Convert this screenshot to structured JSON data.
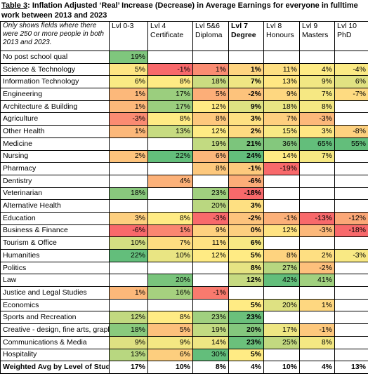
{
  "title": {
    "label": "Table 3",
    "text": ": Inflation Adjusted ‘Real’ Increase (Decrease) in Average Earnings for everyone in fulltime work between 2013 and 2023"
  },
  "table": {
    "note": "Only shows fields where there were 250 or more people in both 2013 and 2023.",
    "columns": [
      {
        "level": "Lvl 0-3"
      },
      {
        "level": "Lvl 4",
        "name": "Certificate"
      },
      {
        "level": "Lvl 5&6",
        "name": "Diploma"
      },
      {
        "level": "Lvl 7",
        "name": "Degree",
        "bold": true
      },
      {
        "level": "Lvl 8",
        "name": "Honours"
      },
      {
        "level": "Lvl 9",
        "name": "Masters"
      },
      {
        "level": "Lvl 10",
        "name": "PhD"
      }
    ],
    "rows": [
      {
        "label": "No post school qual",
        "cells": [
          "19%",
          null,
          null,
          null,
          null,
          null,
          null
        ]
      },
      {
        "label": "Science & Technology",
        "cells": [
          "5%",
          "-1%",
          "1%",
          "1%",
          "11%",
          "4%",
          "-4%"
        ]
      },
      {
        "label": "Information Technology",
        "cells": [
          "6%",
          "8%",
          "18%",
          "7%",
          "13%",
          "9%",
          "6%"
        ]
      },
      {
        "label": "Engineering",
        "cells": [
          "1%",
          "17%",
          "5%",
          "-2%",
          "9%",
          "7%",
          "-7%"
        ]
      },
      {
        "label": "Architecture & Building",
        "cells": [
          "1%",
          "17%",
          "12%",
          "9%",
          "18%",
          "8%",
          null
        ]
      },
      {
        "label": "Agriculture",
        "cells": [
          "-3%",
          "8%",
          "8%",
          "3%",
          "7%",
          "-3%",
          null
        ]
      },
      {
        "label": "Other Health",
        "cells": [
          "1%",
          "13%",
          "12%",
          "2%",
          "15%",
          "3%",
          "-8%"
        ]
      },
      {
        "label": "Medicine",
        "cells": [
          null,
          null,
          "19%",
          "21%",
          "36%",
          "65%",
          "55%"
        ]
      },
      {
        "label": "Nursing",
        "cells": [
          "2%",
          "22%",
          "6%",
          "24%",
          "14%",
          "7%",
          null
        ]
      },
      {
        "label": "Pharmacy",
        "cells": [
          null,
          null,
          "8%",
          "-1%",
          "-19%",
          null,
          null
        ]
      },
      {
        "label": "Dentistry",
        "cells": [
          null,
          "4%",
          null,
          "-6%",
          null,
          null,
          null
        ]
      },
      {
        "label": "Veterinarian",
        "cells": [
          "18%",
          null,
          "23%",
          "-18%",
          null,
          null,
          null
        ]
      },
      {
        "label": "Alternative Health",
        "cells": [
          null,
          null,
          "20%",
          "3%",
          null,
          null,
          null
        ]
      },
      {
        "label": "Education",
        "cells": [
          "3%",
          "8%",
          "-3%",
          "-2%",
          "-1%",
          "-13%",
          "-12%"
        ]
      },
      {
        "label": "Business & Finance",
        "cells": [
          "-6%",
          "1%",
          "9%",
          "0%",
          "12%",
          "-3%",
          "-18%"
        ]
      },
      {
        "label": "Tourism & Office",
        "cells": [
          "10%",
          "7%",
          "11%",
          "6%",
          null,
          null,
          null
        ]
      },
      {
        "label": "Humanities",
        "cells": [
          "22%",
          "10%",
          "12%",
          "5%",
          "8%",
          "2%",
          "-3%"
        ]
      },
      {
        "label": "Politics",
        "cells": [
          null,
          null,
          null,
          "8%",
          "27%",
          "-2%",
          null
        ]
      },
      {
        "label": "Law",
        "cells": [
          null,
          "20%",
          null,
          "12%",
          "42%",
          "41%",
          null
        ]
      },
      {
        "label": "Justice and Legal Studies",
        "cells": [
          "1%",
          "16%",
          "-1%",
          null,
          null,
          null,
          null
        ]
      },
      {
        "label": "Economics",
        "cells": [
          null,
          null,
          null,
          "5%",
          "20%",
          "1%",
          null
        ]
      },
      {
        "label": "Sports and Recreation",
        "cells": [
          "12%",
          "8%",
          "23%",
          "23%",
          null,
          null,
          null
        ]
      },
      {
        "label": "Creative - design, fine arts, graphic",
        "cells": [
          "18%",
          "5%",
          "19%",
          "20%",
          "17%",
          "-1%",
          null
        ]
      },
      {
        "label": "Communications & Media",
        "cells": [
          "9%",
          "9%",
          "14%",
          "23%",
          "25%",
          "8%",
          null
        ]
      },
      {
        "label": "Hospitality",
        "cells": [
          "13%",
          "6%",
          "30%",
          "5%",
          null,
          null,
          null
        ]
      }
    ],
    "total": {
      "label": "Weighted Avg by Level of Study",
      "cells": [
        "17%",
        "10%",
        "8%",
        "4%",
        "10%",
        "4%",
        "13%"
      ]
    },
    "colors": {
      "low": "#f8696b",
      "mid": "#ffeb84",
      "high": "#63be7b"
    }
  }
}
